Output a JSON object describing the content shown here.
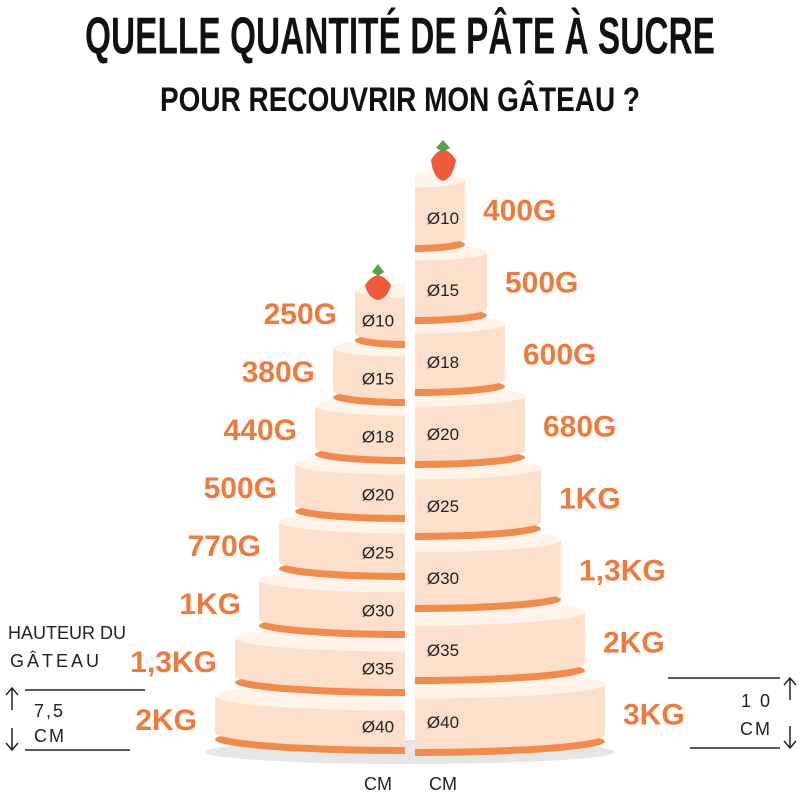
{
  "header": {
    "line1": "QUELLE QUANTITÉ DE PÂTE À SUCRE",
    "line2": "POUR RECOUVRIR MON GÂTEAU ?"
  },
  "left_cake": {
    "height_label_1": "HAUTEUR DU",
    "height_label_2": "GÂTEAU",
    "height_value": "7,5",
    "height_unit": "CM",
    "diameter_unit": "CM",
    "tiers": [
      {
        "diameter": "Ø10",
        "weight": "250G"
      },
      {
        "diameter": "Ø15",
        "weight": "380G"
      },
      {
        "diameter": "Ø18",
        "weight": "440G"
      },
      {
        "diameter": "Ø20",
        "weight": "500G"
      },
      {
        "diameter": "Ø25",
        "weight": "770G"
      },
      {
        "diameter": "Ø30",
        "weight": "1KG"
      },
      {
        "diameter": "Ø35",
        "weight": "1,3KG"
      },
      {
        "diameter": "Ø40",
        "weight": "2KG"
      }
    ]
  },
  "right_cake": {
    "height_value": "1 0",
    "height_unit": "CM",
    "diameter_unit": "CM",
    "tiers": [
      {
        "diameter": "Ø10",
        "weight": "400G"
      },
      {
        "diameter": "Ø15",
        "weight": "500G"
      },
      {
        "diameter": "Ø18",
        "weight": "600G"
      },
      {
        "diameter": "Ø20",
        "weight": "680G"
      },
      {
        "diameter": "Ø25",
        "weight": "1KG"
      },
      {
        "diameter": "Ø30",
        "weight": "1,3KG"
      },
      {
        "diameter": "Ø35",
        "weight": "2KG"
      },
      {
        "diameter": "Ø40",
        "weight": "3KG"
      }
    ]
  }
}
